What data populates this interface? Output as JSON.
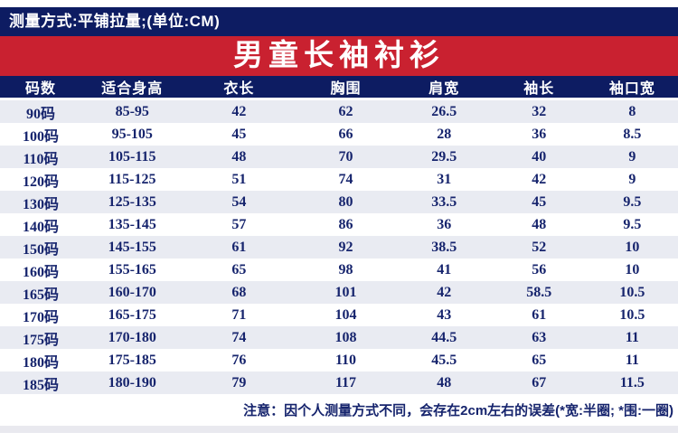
{
  "meta_bar": {
    "text": "测量方式:平铺拉量;(单位:CM)"
  },
  "banner": {
    "title": "男童长袖衬衫"
  },
  "table": {
    "headers": [
      "码数",
      "适合身高",
      "衣长",
      "胸围",
      "肩宽",
      "袖长",
      "袖口宽"
    ],
    "rows": [
      [
        "90码",
        "85-95",
        "42",
        "62",
        "26.5",
        "32",
        "8"
      ],
      [
        "100码",
        "95-105",
        "45",
        "66",
        "28",
        "36",
        "8.5"
      ],
      [
        "110码",
        "105-115",
        "48",
        "70",
        "29.5",
        "40",
        "9"
      ],
      [
        "120码",
        "115-125",
        "51",
        "74",
        "31",
        "42",
        "9"
      ],
      [
        "130码",
        "125-135",
        "54",
        "80",
        "33.5",
        "45",
        "9.5"
      ],
      [
        "140码",
        "135-145",
        "57",
        "86",
        "36",
        "48",
        "9.5"
      ],
      [
        "150码",
        "145-155",
        "61",
        "92",
        "38.5",
        "52",
        "10"
      ],
      [
        "160码",
        "155-165",
        "65",
        "98",
        "41",
        "56",
        "10"
      ],
      [
        "165码",
        "160-170",
        "68",
        "101",
        "42",
        "58.5",
        "10.5"
      ],
      [
        "170码",
        "165-175",
        "71",
        "104",
        "43",
        "61",
        "10.5"
      ],
      [
        "175码",
        "170-180",
        "74",
        "108",
        "44.5",
        "63",
        "11"
      ],
      [
        "180码",
        "175-185",
        "76",
        "110",
        "45.5",
        "65",
        "11"
      ],
      [
        "185码",
        "180-190",
        "79",
        "117",
        "48",
        "67",
        "11.5"
      ]
    ]
  },
  "note": {
    "text": "注意：因个人测量方式不同，会存在2cm左右的误差(*宽:半圈; *围:一圈)"
  },
  "colors": {
    "navy": "#0d1c62",
    "red": "#c92130",
    "row_alt": "#e9ebf2",
    "cell_text": "#16246d"
  }
}
